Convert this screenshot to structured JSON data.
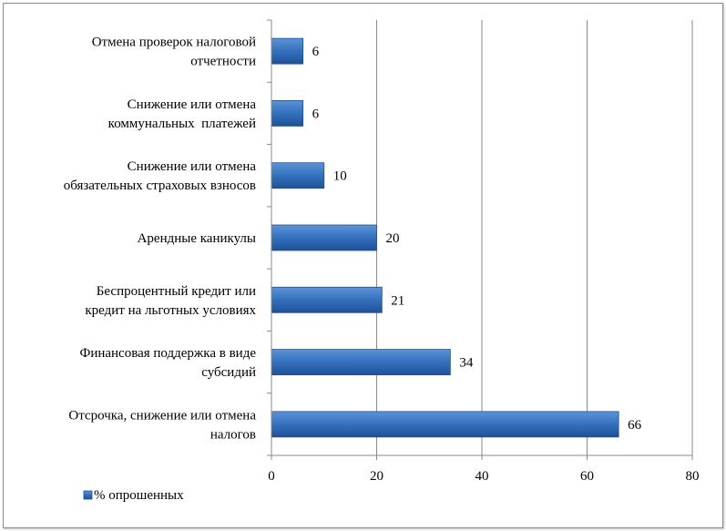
{
  "chart_data": {
    "type": "bar",
    "orientation": "horizontal",
    "categories": [
      [
        "Отмена проверок налоговой",
        "отчетности"
      ],
      [
        "Снижение или отмена",
        "коммунальных  платежей"
      ],
      [
        "Снижение или отмена",
        "обязательных страховых взносов"
      ],
      [
        "Арендные каникулы"
      ],
      [
        "Беспроцентный кредит или",
        "кредит на льготных условиях"
      ],
      [
        "Финансовая поддержка в виде",
        "субсидий"
      ],
      [
        "Отсрочка, снижение или отмена",
        "налогов"
      ]
    ],
    "series": [
      {
        "name": "% опрошенных",
        "values": [
          6,
          6,
          10,
          20,
          21,
          34,
          66
        ]
      }
    ],
    "data_labels": [
      "6",
      "6",
      "10",
      "20",
      "21",
      "34",
      "66"
    ],
    "x_ticks": [
      "0",
      "20",
      "40",
      "60",
      "80"
    ],
    "xlim": [
      0,
      80
    ],
    "grid": "vertical",
    "legend_position": "bottom-left",
    "bar_color": "#2f6bb5"
  }
}
